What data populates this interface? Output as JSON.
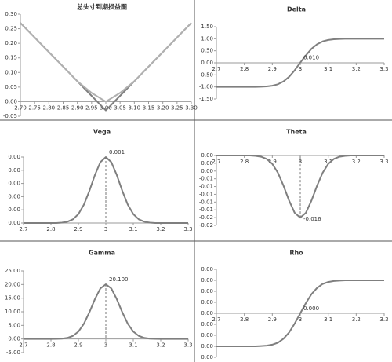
{
  "chart_data": [
    {
      "type": "line",
      "title": "总头寸到期损益图",
      "x": [
        2.7,
        2.75,
        2.8,
        2.85,
        2.9,
        2.95,
        3,
        3.05,
        3.1,
        3.15,
        3.2,
        3.25,
        3.3
      ],
      "series": [
        {
          "color": "#7f7f7f",
          "values": [
            0.27,
            0.22,
            0.17,
            0.12,
            0.07,
            0.02,
            -0.03,
            0.02,
            0.07,
            0.12,
            0.17,
            0.22,
            0.27
          ]
        },
        {
          "color": "#b0b0b0",
          "values": [
            0.27,
            0.22,
            0.17,
            0.12,
            0.07,
            0.03,
            0,
            0.03,
            0.07,
            0.12,
            0.17,
            0.22,
            0.27
          ]
        }
      ],
      "xlim": [
        2.7,
        3.3
      ],
      "xticks": [
        {
          "value": 2.7,
          "label": "2.70"
        },
        {
          "value": 2.75,
          "label": "2.75"
        },
        {
          "value": 2.8,
          "label": "2.80"
        },
        {
          "value": 2.85,
          "label": "2.85"
        },
        {
          "value": 2.9,
          "label": "2.90"
        },
        {
          "value": 2.95,
          "label": "2.95"
        },
        {
          "value": 3,
          "label": "3.00"
        },
        {
          "value": 3.05,
          "label": "3.05"
        },
        {
          "value": 3.1,
          "label": "3.10"
        },
        {
          "value": 3.15,
          "label": "3.15"
        },
        {
          "value": 3.2,
          "label": "3.20"
        },
        {
          "value": 3.25,
          "label": "3.25"
        },
        {
          "value": 3.3,
          "label": "3.30"
        }
      ],
      "ylim": [
        -0.05,
        0.3
      ],
      "yticks": [
        {
          "value": 0.3,
          "label": "0.30"
        },
        {
          "value": 0.25,
          "label": "0.25"
        },
        {
          "value": 0.2,
          "label": "0.20"
        },
        {
          "value": 0.15,
          "label": "0.15"
        },
        {
          "value": 0.1,
          "label": "0.10"
        },
        {
          "value": 0.05,
          "label": "0.05"
        },
        {
          "value": 0,
          "label": "0.00"
        },
        {
          "value": -0.05,
          "label": "-0.05"
        }
      ]
    },
    {
      "type": "line",
      "title": "Delta",
      "annotation": "0.010",
      "dashed_marker": false,
      "x": [
        2.7,
        2.72,
        2.74,
        2.76,
        2.78,
        2.8,
        2.82,
        2.84,
        2.86,
        2.88,
        2.9,
        2.92,
        2.94,
        2.96,
        2.98,
        3,
        3.02,
        3.04,
        3.06,
        3.08,
        3.1,
        3.12,
        3.14,
        3.16,
        3.18,
        3.2,
        3.22,
        3.24,
        3.26,
        3.28,
        3.3
      ],
      "series": [
        {
          "color": "#7f7f7f",
          "values": [
            -1,
            -1,
            -1,
            -1,
            -1,
            -1,
            -1,
            -1,
            -0.99,
            -0.98,
            -0.95,
            -0.89,
            -0.77,
            -0.58,
            -0.31,
            0.01,
            0.31,
            0.58,
            0.77,
            0.89,
            0.95,
            0.98,
            0.99,
            1,
            1,
            1,
            1,
            1,
            1,
            1,
            1
          ]
        }
      ],
      "xlim": [
        2.7,
        3.3
      ],
      "xticks": [
        2.7,
        2.8,
        2.9,
        3,
        3.1,
        3.2,
        3.3
      ],
      "ylim": [
        -1.5,
        1.5
      ],
      "yticks": [
        {
          "value": 1.5,
          "label": "1.50"
        },
        {
          "value": 1,
          "label": "1.00"
        },
        {
          "value": 0.5,
          "label": "0.50"
        },
        {
          "value": 0,
          "label": "0.00"
        },
        {
          "value": -0.5,
          "label": "-0.50"
        },
        {
          "value": -1,
          "label": "-1.00"
        },
        {
          "value": -1.5,
          "label": "-1.50"
        }
      ]
    },
    {
      "type": "line",
      "title": "Vega",
      "annotation": "0.001",
      "dashed_marker": true,
      "x": [
        2.7,
        2.72,
        2.74,
        2.76,
        2.78,
        2.8,
        2.82,
        2.84,
        2.86,
        2.88,
        2.9,
        2.92,
        2.94,
        2.96,
        2.98,
        3,
        3.02,
        3.04,
        3.06,
        3.08,
        3.1,
        3.12,
        3.14,
        3.16,
        3.18,
        3.2,
        3.22,
        3.24,
        3.26,
        3.28,
        3.3
      ],
      "series": [
        {
          "color": "#7f7f7f",
          "values": [
            0,
            0,
            0,
            0,
            0,
            0,
            0,
            6e-06,
            2e-05,
            5.6e-05,
            0.000135,
            0.000278,
            0.000487,
            0.000726,
            0.000923,
            0.001,
            0.000923,
            0.000726,
            0.000487,
            0.000278,
            0.000135,
            5.6e-05,
            2e-05,
            6e-06,
            0,
            0,
            0,
            0,
            0,
            0,
            0
          ]
        }
      ],
      "xlim": [
        2.7,
        3.3
      ],
      "xticks": [
        2.7,
        2.8,
        2.9,
        3,
        3.1,
        3.2,
        3.3
      ],
      "ylim": [
        0,
        0.001
      ],
      "yticks": [
        {
          "value": 0.001,
          "label": "0.00"
        },
        {
          "value": 0.0008,
          "label": "0.00"
        },
        {
          "value": 0.0006,
          "label": "0.00"
        },
        {
          "value": 0.0004,
          "label": "0.00"
        },
        {
          "value": 0.0002,
          "label": "0.00"
        },
        {
          "value": 0,
          "label": "0.00"
        }
      ]
    },
    {
      "type": "line",
      "title": "Theta",
      "annotation": "-0.016",
      "dashed_marker": true,
      "x": [
        2.7,
        2.72,
        2.74,
        2.76,
        2.78,
        2.8,
        2.82,
        2.84,
        2.86,
        2.88,
        2.9,
        2.92,
        2.94,
        2.96,
        2.98,
        3,
        3.02,
        3.04,
        3.06,
        3.08,
        3.1,
        3.12,
        3.14,
        3.16,
        3.18,
        3.2,
        3.22,
        3.24,
        3.26,
        3.28,
        3.3
      ],
      "series": [
        {
          "color": "#7f7f7f",
          "values": [
            0,
            0,
            0,
            0,
            0,
            0,
            0,
            -0.0001,
            -0.00032,
            -0.0009,
            -0.00216,
            -0.00445,
            -0.00779,
            -0.01162,
            -0.01477,
            -0.016,
            -0.01477,
            -0.01162,
            -0.00779,
            -0.00445,
            -0.00216,
            -0.0009,
            -0.00032,
            -0.0001,
            0,
            0,
            0,
            0,
            0,
            0,
            0
          ]
        }
      ],
      "xlim": [
        2.7,
        3.3
      ],
      "xticks": [
        2.7,
        2.8,
        2.9,
        3,
        3.1,
        3.2,
        3.3
      ],
      "ylim": [
        -0.018,
        0
      ],
      "yticks": [
        {
          "value": 0,
          "label": "0.00"
        },
        {
          "value": -0.002,
          "label": "0.00"
        },
        {
          "value": -0.004,
          "label": "0.00"
        },
        {
          "value": -0.006,
          "label": "-0.01"
        },
        {
          "value": -0.008,
          "label": "-0.01"
        },
        {
          "value": -0.01,
          "label": "-0.01"
        },
        {
          "value": -0.012,
          "label": "-0.01"
        },
        {
          "value": -0.014,
          "label": "-0.01"
        },
        {
          "value": -0.016,
          "label": "-0.02"
        },
        {
          "value": -0.018,
          "label": "-0.02"
        }
      ]
    },
    {
      "type": "line",
      "title": "Gamma",
      "annotation": "20.100",
      "dashed_marker": true,
      "x": [
        2.7,
        2.72,
        2.74,
        2.76,
        2.78,
        2.8,
        2.82,
        2.84,
        2.86,
        2.88,
        2.9,
        2.92,
        2.94,
        2.96,
        2.98,
        3,
        3.02,
        3.04,
        3.06,
        3.08,
        3.1,
        3.12,
        3.14,
        3.16,
        3.18,
        3.2,
        3.22,
        3.24,
        3.26,
        3.28,
        3.3
      ],
      "series": [
        {
          "color": "#7f7f7f",
          "values": [
            0,
            0,
            0,
            0,
            0,
            0,
            0.03,
            0.12,
            0.4,
            1.13,
            2.71,
            5.59,
            9.79,
            14.59,
            18.55,
            20.1,
            18.55,
            14.59,
            9.79,
            5.59,
            2.71,
            1.13,
            0.4,
            0.12,
            0.03,
            0,
            0,
            0,
            0,
            0,
            0
          ]
        }
      ],
      "xlim": [
        2.7,
        3.3
      ],
      "xticks": [
        2.7,
        2.8,
        2.9,
        3,
        3.1,
        3.2,
        3.3
      ],
      "ylim": [
        -5,
        25
      ],
      "yticks": [
        {
          "value": 25,
          "label": "25.00"
        },
        {
          "value": 20,
          "label": "20.00"
        },
        {
          "value": 15,
          "label": "15.00"
        },
        {
          "value": 10,
          "label": "10.00"
        },
        {
          "value": 5,
          "label": "5.00"
        },
        {
          "value": 0,
          "label": "0.00"
        },
        {
          "value": -5,
          "label": "-5.00"
        }
      ]
    },
    {
      "type": "line",
      "title": "Rho",
      "annotation": "0.000",
      "dashed_marker": false,
      "x": [
        2.7,
        2.72,
        2.74,
        2.76,
        2.78,
        2.8,
        2.82,
        2.84,
        2.86,
        2.88,
        2.9,
        2.92,
        2.94,
        2.96,
        2.98,
        3,
        3.02,
        3.04,
        3.06,
        3.08,
        3.1,
        3.12,
        3.14,
        3.16,
        3.18,
        3.2,
        3.22,
        3.24,
        3.26,
        3.28,
        3.3
      ],
      "series": [
        {
          "color": "#7f7f7f",
          "values": [
            -0.0003,
            -0.0003,
            -0.0003,
            -0.0003,
            -0.0003,
            -0.0003,
            -0.0003,
            -0.0003,
            -0.000297,
            -0.000294,
            -0.000285,
            -0.000267,
            -0.000231,
            -0.000174,
            -9.3e-05,
            0,
            9.3e-05,
            0.000174,
            0.000231,
            0.000267,
            0.000285,
            0.000294,
            0.000297,
            0.0003,
            0.0003,
            0.0003,
            0.0003,
            0.0003,
            0.0003,
            0.0003,
            0.0003
          ]
        }
      ],
      "xlim": [
        2.7,
        3.3
      ],
      "xticks": [
        2.7,
        2.8,
        2.9,
        3,
        3.1,
        3.2,
        3.3
      ],
      "ylim": [
        -0.0004,
        0.0004
      ],
      "yticks": [
        {
          "value": 0.0004,
          "label": "0.00"
        },
        {
          "value": 0.0003,
          "label": "0.00"
        },
        {
          "value": 0.0002,
          "label": "0.00"
        },
        {
          "value": 0.0001,
          "label": "0.00"
        },
        {
          "value": 0,
          "label": "0.00"
        },
        {
          "value": -0.0001,
          "label": "0.00"
        },
        {
          "value": -0.0002,
          "label": "0.00"
        },
        {
          "value": -0.0003,
          "label": "0.00"
        },
        {
          "value": -0.0004,
          "label": "0.00"
        }
      ]
    }
  ]
}
